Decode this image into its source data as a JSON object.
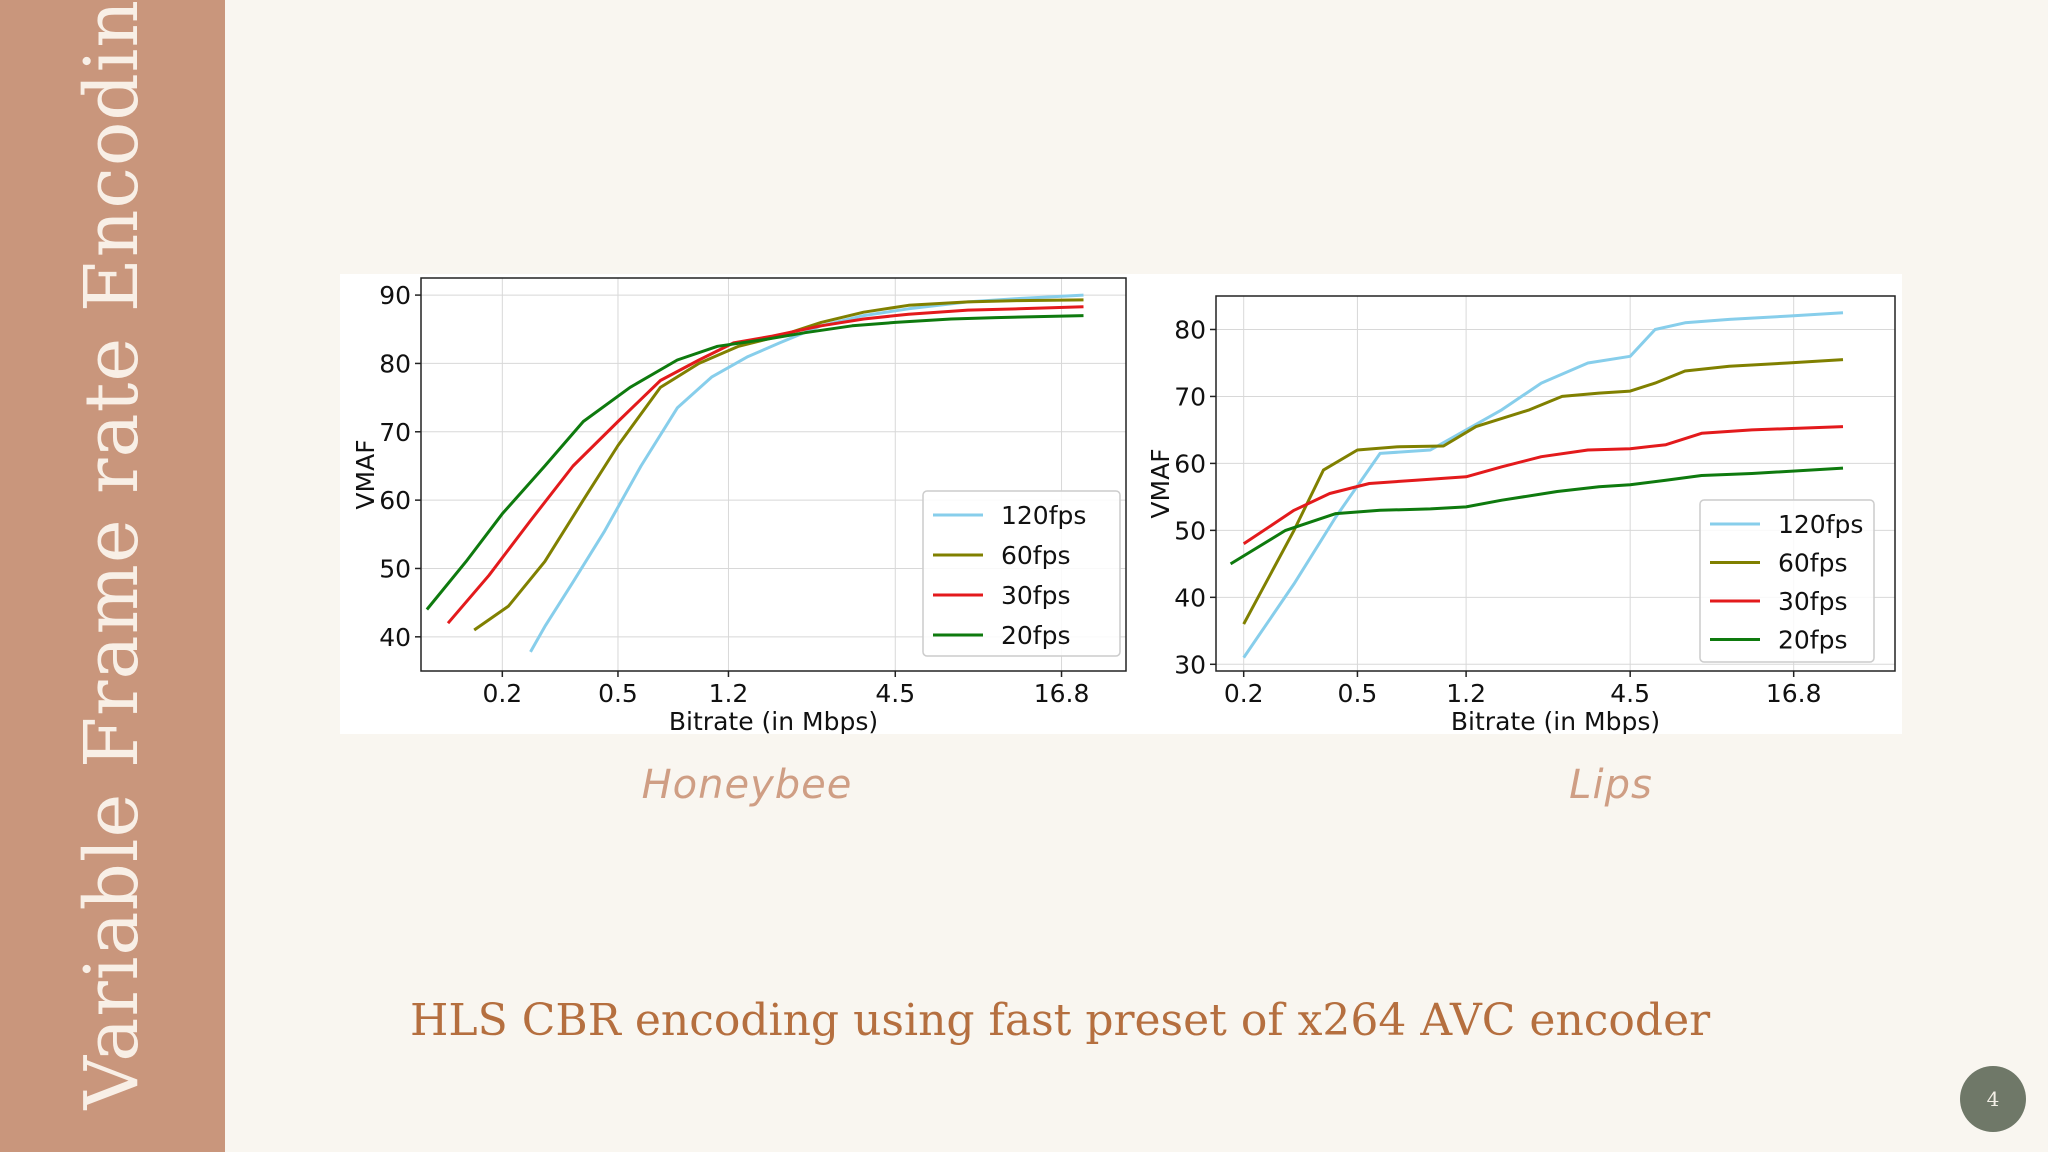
{
  "slide": {
    "sidebar_title": "Variable Frame rate Encoding",
    "subtitle": "HLS CBR encoding using fast preset of x264 AVC encoder",
    "page_number": "4",
    "colors": {
      "sidebar": "#c9967c",
      "background": "#f9f6f0",
      "subtitle": "#b56f3f",
      "caption": "#cf9e84",
      "badge": "#6f7868"
    }
  },
  "chart_data": [
    {
      "type": "line",
      "caption": "Honeybee",
      "xlabel": "Bitrate (in Mbps)",
      "ylabel": "VMAF",
      "x_scale": "log",
      "x_ticks": [
        0.2,
        0.5,
        1.2,
        4.5,
        16.8
      ],
      "x_tick_labels": [
        "0.2",
        "0.5",
        "1.2",
        "4.5",
        "16.8"
      ],
      "y_ticks": [
        40,
        50,
        60,
        70,
        80,
        90
      ],
      "xlim": [
        0.105,
        28
      ],
      "ylim": [
        35,
        92.5
      ],
      "grid": true,
      "legend_position": "lower right",
      "series": [
        {
          "name": "120fps",
          "color": "#87ceeb",
          "x": [
            0.25,
            0.28,
            0.35,
            0.45,
            0.6,
            0.8,
            1.05,
            1.4,
            1.8,
            2.5,
            3.5,
            5,
            8,
            12,
            20
          ],
          "y": [
            37.8,
            41.5,
            48,
            55.5,
            65,
            73.5,
            78,
            81,
            83,
            85.5,
            87,
            88,
            89,
            89.5,
            90
          ]
        },
        {
          "name": "60fps",
          "color": "#808000",
          "x": [
            0.16,
            0.21,
            0.28,
            0.38,
            0.5,
            0.7,
            0.95,
            1.3,
            1.8,
            2.5,
            3.5,
            5,
            8,
            12,
            20
          ],
          "y": [
            41,
            44.5,
            51,
            60,
            68,
            76.5,
            80,
            82.5,
            84,
            86,
            87.5,
            88.5,
            89,
            89.2,
            89.3
          ]
        },
        {
          "name": "30fps",
          "color": "#e31a1c",
          "x": [
            0.13,
            0.18,
            0.25,
            0.35,
            0.5,
            0.7,
            0.95,
            1.25,
            1.7,
            2.5,
            3.5,
            5,
            8,
            12,
            20
          ],
          "y": [
            42,
            49,
            57,
            65,
            71.5,
            77.5,
            80.5,
            83,
            84,
            85.5,
            86.5,
            87.2,
            87.8,
            88,
            88.3
          ]
        },
        {
          "name": "20fps",
          "color": "#0e7a0e",
          "x": [
            0.11,
            0.15,
            0.2,
            0.28,
            0.38,
            0.55,
            0.8,
            1.1,
            1.6,
            2.2,
            3.2,
            4.5,
            7,
            10,
            20
          ],
          "y": [
            44,
            51,
            58,
            65,
            71.5,
            76.5,
            80.5,
            82.5,
            83.5,
            84.5,
            85.5,
            86,
            86.5,
            86.7,
            87
          ]
        }
      ]
    },
    {
      "type": "line",
      "caption": "Lips",
      "xlabel": "Bitrate (in Mbps)",
      "ylabel": "VMAF",
      "x_scale": "log",
      "x_ticks": [
        0.2,
        0.5,
        1.2,
        4.5,
        16.8
      ],
      "x_tick_labels": [
        "0.2",
        "0.5",
        "1.2",
        "4.5",
        "16.8"
      ],
      "y_ticks": [
        30,
        40,
        50,
        60,
        70,
        80
      ],
      "xlim": [
        0.16,
        38
      ],
      "ylim": [
        29,
        85
      ],
      "grid": true,
      "legend_position": "lower right",
      "series": [
        {
          "name": "120fps",
          "color": "#87ceeb",
          "x": [
            0.2,
            0.3,
            0.42,
            0.6,
            0.9,
            1.2,
            1.6,
            2.2,
            3.2,
            4.5,
            5.5,
            7,
            10,
            16,
            25
          ],
          "y": [
            31,
            42,
            52,
            61.5,
            62,
            65,
            68,
            72,
            75,
            76,
            80,
            81,
            81.5,
            82,
            82.5
          ]
        },
        {
          "name": "60fps",
          "color": "#808000",
          "x": [
            0.2,
            0.3,
            0.38,
            0.5,
            0.7,
            1.0,
            1.3,
            2.0,
            2.6,
            3.5,
            4.5,
            5.5,
            7,
            10,
            16,
            25
          ],
          "y": [
            36,
            50,
            59,
            62,
            62.5,
            62.6,
            65.5,
            68,
            70,
            70.5,
            70.8,
            72,
            73.8,
            74.5,
            75,
            75.5
          ]
        },
        {
          "name": "30fps",
          "color": "#e31a1c",
          "x": [
            0.2,
            0.3,
            0.4,
            0.55,
            0.8,
            1.2,
            1.6,
            2.2,
            3.2,
            4.5,
            6,
            8,
            12,
            25
          ],
          "y": [
            48,
            53,
            55.5,
            57,
            57.5,
            58,
            59.5,
            61,
            62,
            62.2,
            62.8,
            64.5,
            65,
            65.5
          ]
        },
        {
          "name": "20fps",
          "color": "#0e7a0e",
          "x": [
            0.18,
            0.28,
            0.42,
            0.6,
            0.9,
            1.2,
            1.6,
            2.5,
            3.5,
            4.5,
            6,
            8,
            12,
            25
          ],
          "y": [
            45,
            50,
            52.5,
            53,
            53.2,
            53.5,
            54.5,
            55.8,
            56.5,
            56.8,
            57.5,
            58.2,
            58.5,
            59.3
          ]
        }
      ]
    }
  ]
}
